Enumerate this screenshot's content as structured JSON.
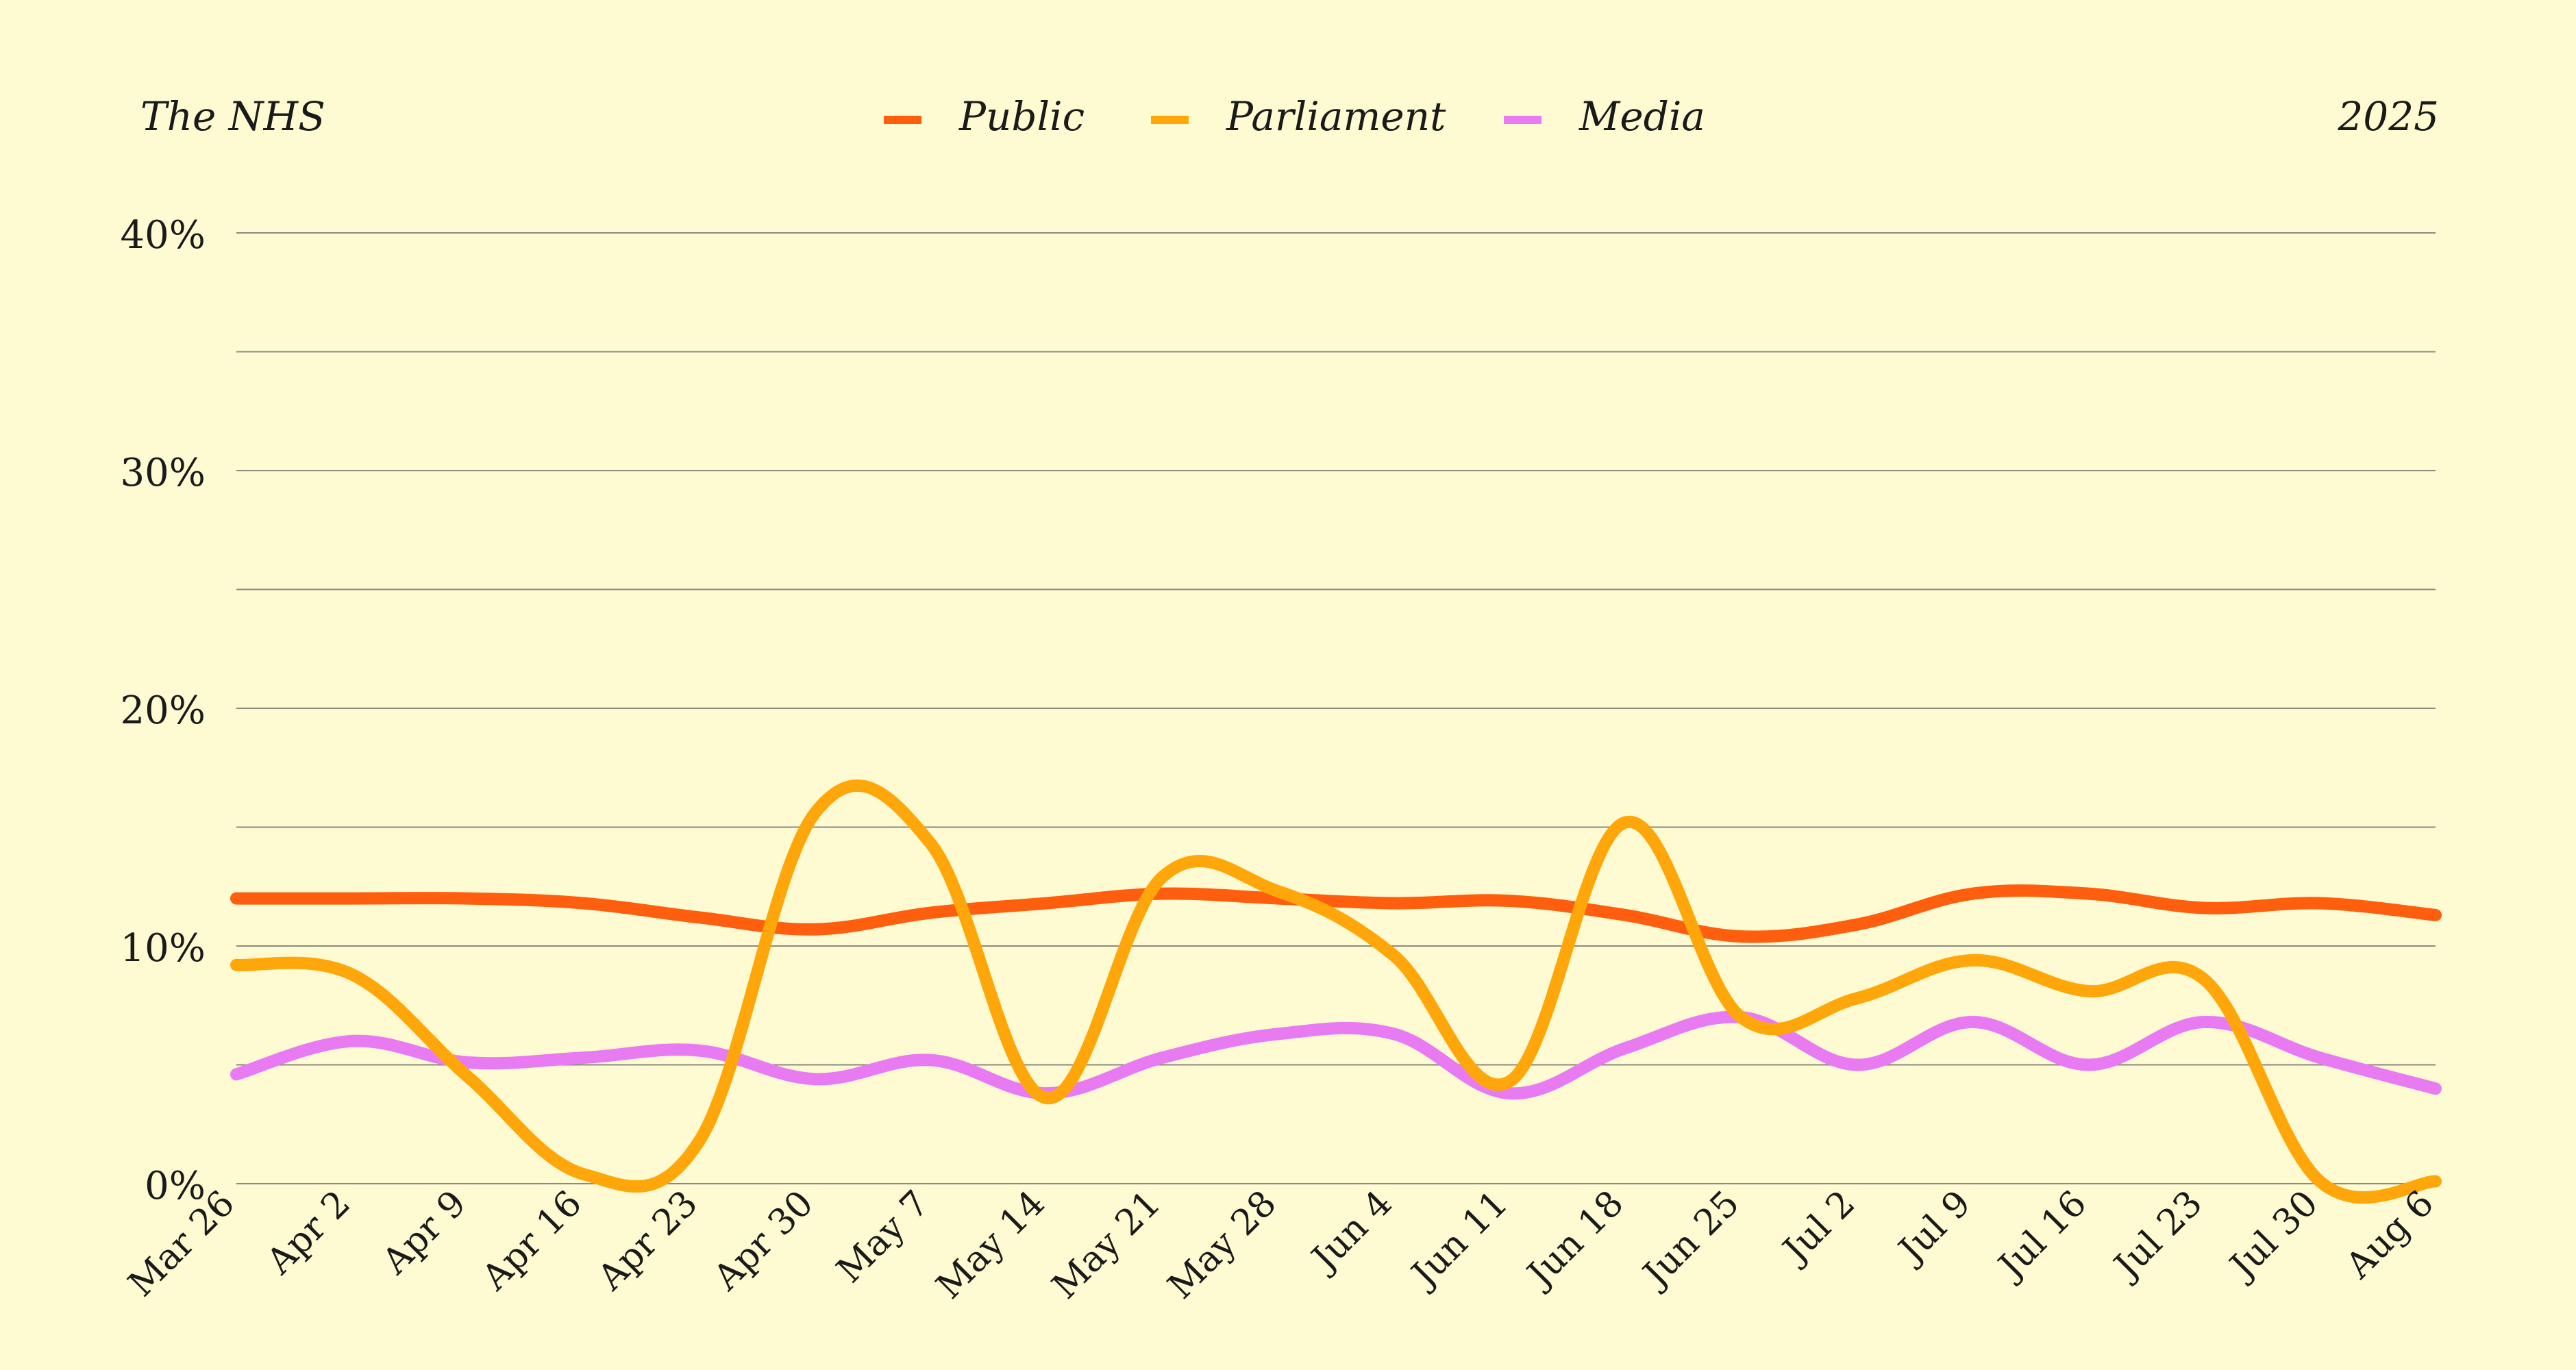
{
  "header": {
    "title": "The NHS",
    "year": "2025"
  },
  "colors": {
    "background": "#FEFBD3",
    "grid": "#8a8a80",
    "text": "#1a1a1a"
  },
  "chart_data": {
    "type": "line",
    "title": "The NHS",
    "xlabel": "",
    "ylabel": "",
    "ylim": [
      0,
      40
    ],
    "yticks": [
      0,
      10,
      20,
      30,
      40
    ],
    "ytick_labels": [
      "0%",
      "10%",
      "20%",
      "30%",
      "40%"
    ],
    "grid": true,
    "legend_position": "top-center",
    "categories": [
      "Mar 26",
      "Apr 2",
      "Apr 9",
      "Apr 16",
      "Apr 23",
      "Apr 30",
      "May 7",
      "May 14",
      "May 21",
      "May 28",
      "Jun 4",
      "Jun 11",
      "Jun 18",
      "Jun 25",
      "Jul 2",
      "Jul 9",
      "Jul 16",
      "Jul 23",
      "Jul 30",
      "Aug 6"
    ],
    "series": [
      {
        "name": "Public",
        "color": "#FF5E0E",
        "values": [
          12.0,
          12.0,
          12.0,
          11.8,
          11.2,
          10.7,
          11.4,
          11.8,
          12.2,
          12.0,
          11.8,
          11.9,
          11.3,
          10.4,
          10.9,
          12.2,
          12.2,
          11.6,
          11.8,
          11.3
        ]
      },
      {
        "name": "Parliament",
        "color": "#FFA70A",
        "values": [
          9.2,
          8.8,
          4.5,
          0.4,
          1.8,
          15.6,
          14.3,
          3.6,
          12.9,
          12.3,
          9.6,
          4.3,
          15.2,
          7.0,
          7.8,
          9.4,
          8.1,
          8.6,
          0.1,
          0.1
        ]
      },
      {
        "name": "Media",
        "color": "#E97BF2",
        "values": [
          4.6,
          6.0,
          5.1,
          5.3,
          5.6,
          4.4,
          5.2,
          3.8,
          5.3,
          6.3,
          6.3,
          3.8,
          5.7,
          7.0,
          5.0,
          6.8,
          5.0,
          6.8,
          5.3,
          4.0
        ]
      }
    ]
  }
}
